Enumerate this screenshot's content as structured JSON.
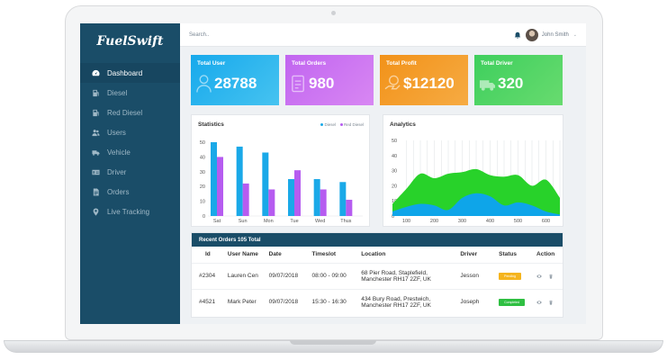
{
  "brand": {
    "name": "FuelSwift"
  },
  "topbar": {
    "search_placeholder": "Search..",
    "user_name": "John Smith",
    "caret": "⌄"
  },
  "sidebar": {
    "items": [
      {
        "label": "Dashboard",
        "icon": "speedometer-icon",
        "active": true
      },
      {
        "label": "Diesel",
        "icon": "fuel-pump-icon"
      },
      {
        "label": "Red Diesel",
        "icon": "fuel-pump-icon"
      },
      {
        "label": "Users",
        "icon": "users-icon"
      },
      {
        "label": "Vehicle",
        "icon": "truck-icon"
      },
      {
        "label": "Driver",
        "icon": "id-card-icon"
      },
      {
        "label": "Orders",
        "icon": "document-icon"
      },
      {
        "label": "Live Tracking",
        "icon": "map-pin-icon"
      }
    ]
  },
  "cards": [
    {
      "title": "Total User",
      "value": "28788",
      "icon": "user-icon"
    },
    {
      "title": "Total Orders",
      "value": "980",
      "icon": "orders-icon"
    },
    {
      "title": "Total Profit",
      "value": "$12120",
      "icon": "money-hand-icon"
    },
    {
      "title": "Total Driver",
      "value": "320",
      "icon": "truck-icon"
    }
  ],
  "colors": {
    "sidebar": "#1a4d68",
    "diesel": "#1aa9e8",
    "red_diesel": "#b65cf0",
    "analytics_green": "#28d22a",
    "analytics_blue": "#0ea5e9"
  },
  "chart_data": [
    {
      "type": "bar",
      "title": "Statistics",
      "categories": [
        "Sat",
        "Sun",
        "Mon",
        "Tue",
        "Wed",
        "Thus"
      ],
      "series": [
        {
          "name": "Diesel",
          "values": [
            50,
            47,
            43,
            25,
            25,
            23
          ]
        },
        {
          "name": "Red Diesel",
          "values": [
            40,
            22,
            18,
            31,
            18,
            11
          ]
        }
      ],
      "ylim": [
        0,
        50
      ],
      "yticks": [
        0,
        10,
        20,
        30,
        40,
        50
      ],
      "legend": "top-right"
    },
    {
      "type": "area",
      "title": "Analytics",
      "x": [
        50,
        100,
        150,
        200,
        250,
        300,
        350,
        400,
        450,
        500,
        550,
        600,
        650
      ],
      "series": [
        {
          "values": [
            8,
            18,
            28,
            25,
            28,
            29,
            31,
            27,
            26,
            27,
            20,
            24,
            12
          ]
        },
        {
          "values": [
            3,
            6,
            8,
            7,
            4,
            12,
            15,
            13,
            7,
            9,
            7,
            3,
            1
          ]
        }
      ],
      "ylim": [
        0,
        50
      ],
      "yticks": [
        0,
        10,
        20,
        30,
        40,
        50
      ],
      "xticks": [
        100,
        200,
        300,
        400,
        500,
        600
      ],
      "grid": "vertical"
    }
  ],
  "orders": {
    "title": "Recent Orders 105 Total",
    "columns": [
      "Id",
      "User Name",
      "Date",
      "Timeslot",
      "Location",
      "Driver",
      "Status",
      "Action"
    ],
    "rows": [
      {
        "id": "#2304",
        "user": "Lauren Cen",
        "date": "09/07/2018",
        "timeslot": "08:00 - 09:00",
        "location1": "68 Pier Road, Stapleﬁeld,",
        "location2": "Manchester RH17 2ZF, UK",
        "driver": "Jesson",
        "status": "Pending",
        "status_color": "#f5b41d"
      },
      {
        "id": "#4521",
        "user": "Mark Peter",
        "date": "09/07/2018",
        "timeslot": "15:30 - 16:30",
        "location1": "434 Bury Road, Prestwich,",
        "location2": "Manchester RH17 2ZF, UK",
        "driver": "Joseph",
        "status": "Completed",
        "status_color": "#2fbf42"
      }
    ]
  }
}
